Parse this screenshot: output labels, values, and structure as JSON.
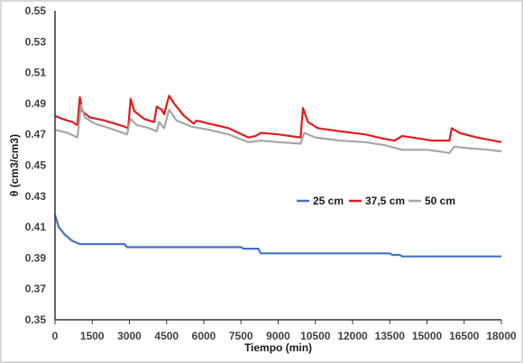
{
  "chart_data": {
    "type": "line",
    "title": "",
    "xlabel": "Tiempo (min)",
    "ylabel": "θ (cm3/cm3)",
    "xlim": [
      0,
      18000
    ],
    "ylim": [
      0.35,
      0.55
    ],
    "x_ticks": [
      "0",
      "1500",
      "3000",
      "4500",
      "6000",
      "7500",
      "9000",
      "10500",
      "12000",
      "13500",
      "15000",
      "16500",
      "18000"
    ],
    "y_ticks": [
      "0.35",
      "0.37",
      "0.39",
      "0.41",
      "0.43",
      "0.45",
      "0.47",
      "0.49",
      "0.51",
      "0.53",
      "0.55"
    ],
    "grid": false,
    "legend_position": "right-middle",
    "series": [
      {
        "name": "25 cm",
        "color": "#4472c4",
        "points": [
          [
            0,
            0.418
          ],
          [
            150,
            0.41
          ],
          [
            400,
            0.405
          ],
          [
            700,
            0.401
          ],
          [
            1000,
            0.399
          ],
          [
            2800,
            0.399
          ],
          [
            2900,
            0.397
          ],
          [
            7500,
            0.397
          ],
          [
            7600,
            0.396
          ],
          [
            8200,
            0.396
          ],
          [
            8300,
            0.393
          ],
          [
            13500,
            0.393
          ],
          [
            13600,
            0.392
          ],
          [
            13900,
            0.392
          ],
          [
            14000,
            0.391
          ],
          [
            18000,
            0.391
          ]
        ]
      },
      {
        "name": "37,5 cm",
        "color": "#e41a1c",
        "points": [
          [
            0,
            0.482
          ],
          [
            300,
            0.48
          ],
          [
            700,
            0.478
          ],
          [
            900,
            0.476
          ],
          [
            1000,
            0.494
          ],
          [
            1100,
            0.485
          ],
          [
            1400,
            0.481
          ],
          [
            2000,
            0.479
          ],
          [
            2800,
            0.475
          ],
          [
            2950,
            0.474
          ],
          [
            3050,
            0.493
          ],
          [
            3200,
            0.485
          ],
          [
            3600,
            0.48
          ],
          [
            4000,
            0.478
          ],
          [
            4100,
            0.488
          ],
          [
            4300,
            0.486
          ],
          [
            4400,
            0.483
          ],
          [
            4600,
            0.495
          ],
          [
            4800,
            0.49
          ],
          [
            5200,
            0.482
          ],
          [
            5600,
            0.477
          ],
          [
            5700,
            0.479
          ],
          [
            6200,
            0.477
          ],
          [
            7000,
            0.474
          ],
          [
            7800,
            0.468
          ],
          [
            8100,
            0.469
          ],
          [
            8300,
            0.471
          ],
          [
            9000,
            0.47
          ],
          [
            9900,
            0.468
          ],
          [
            10000,
            0.487
          ],
          [
            10200,
            0.478
          ],
          [
            10600,
            0.474
          ],
          [
            11500,
            0.472
          ],
          [
            12500,
            0.47
          ],
          [
            13300,
            0.467
          ],
          [
            13700,
            0.466
          ],
          [
            14000,
            0.469
          ],
          [
            14800,
            0.467
          ],
          [
            15200,
            0.466
          ],
          [
            15900,
            0.466
          ],
          [
            16000,
            0.474
          ],
          [
            16300,
            0.471
          ],
          [
            17000,
            0.468
          ],
          [
            18000,
            0.465
          ]
        ]
      },
      {
        "name": "50 cm",
        "color": "#a6a6a6",
        "points": [
          [
            0,
            0.473
          ],
          [
            500,
            0.471
          ],
          [
            900,
            0.468
          ],
          [
            1050,
            0.489
          ],
          [
            1200,
            0.481
          ],
          [
            1600,
            0.477
          ],
          [
            2200,
            0.474
          ],
          [
            2900,
            0.47
          ],
          [
            3050,
            0.48
          ],
          [
            3300,
            0.476
          ],
          [
            3800,
            0.474
          ],
          [
            4100,
            0.472
          ],
          [
            4200,
            0.478
          ],
          [
            4400,
            0.474
          ],
          [
            4600,
            0.486
          ],
          [
            4900,
            0.479
          ],
          [
            5500,
            0.475
          ],
          [
            6200,
            0.473
          ],
          [
            7000,
            0.47
          ],
          [
            7800,
            0.465
          ],
          [
            8300,
            0.466
          ],
          [
            9000,
            0.465
          ],
          [
            9900,
            0.464
          ],
          [
            10050,
            0.471
          ],
          [
            10500,
            0.468
          ],
          [
            11500,
            0.466
          ],
          [
            12500,
            0.465
          ],
          [
            13300,
            0.463
          ],
          [
            14000,
            0.46
          ],
          [
            15000,
            0.46
          ],
          [
            15500,
            0.459
          ],
          [
            15900,
            0.458
          ],
          [
            16100,
            0.462
          ],
          [
            16700,
            0.461
          ],
          [
            17500,
            0.46
          ],
          [
            18000,
            0.459
          ]
        ]
      }
    ]
  }
}
